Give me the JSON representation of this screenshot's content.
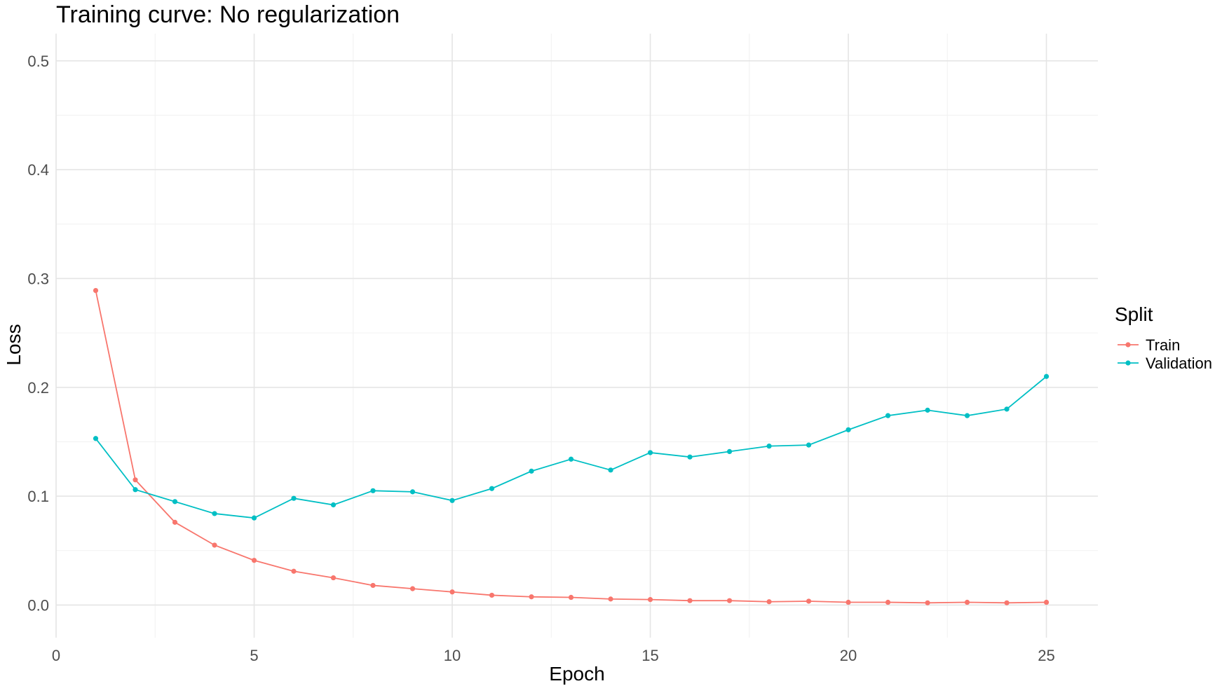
{
  "chart_data": {
    "type": "line",
    "title": "Training curve: No regularization",
    "xlabel": "Epoch",
    "ylabel": "Loss",
    "xlim": [
      0,
      26.3
    ],
    "ylim": [
      -0.03,
      0.525
    ],
    "x_ticks": [
      0,
      5,
      10,
      15,
      20,
      25
    ],
    "x_tick_labels": [
      "0",
      "5",
      "10",
      "15",
      "20",
      "25"
    ],
    "y_ticks": [
      0.0,
      0.1,
      0.2,
      0.3,
      0.4,
      0.5
    ],
    "y_tick_labels": [
      "0.0",
      "0.1",
      "0.2",
      "0.3",
      "0.4",
      "0.5"
    ],
    "grid": true,
    "legend": {
      "title": "Split",
      "position": "right",
      "entries": [
        "Train",
        "Validation"
      ]
    },
    "x": [
      1,
      2,
      3,
      4,
      5,
      6,
      7,
      8,
      9,
      10,
      11,
      12,
      13,
      14,
      15,
      16,
      17,
      18,
      19,
      20,
      21,
      22,
      23,
      24,
      25
    ],
    "series": [
      {
        "name": "Train",
        "color": "#F8766D",
        "values": [
          0.289,
          0.115,
          0.076,
          0.055,
          0.041,
          0.031,
          0.025,
          0.018,
          0.015,
          0.012,
          0.009,
          0.0075,
          0.007,
          0.0055,
          0.005,
          0.004,
          0.004,
          0.003,
          0.0035,
          0.0025,
          0.0025,
          0.002,
          0.0025,
          0.002,
          0.0025
        ]
      },
      {
        "name": "Validation",
        "color": "#00BFC4",
        "values": [
          0.153,
          0.106,
          0.095,
          0.084,
          0.08,
          0.098,
          0.092,
          0.105,
          0.104,
          0.096,
          0.107,
          0.123,
          0.134,
          0.124,
          0.14,
          0.136,
          0.141,
          0.146,
          0.147,
          0.161,
          0.174,
          0.179,
          0.174,
          0.18,
          0.21
        ]
      }
    ]
  }
}
